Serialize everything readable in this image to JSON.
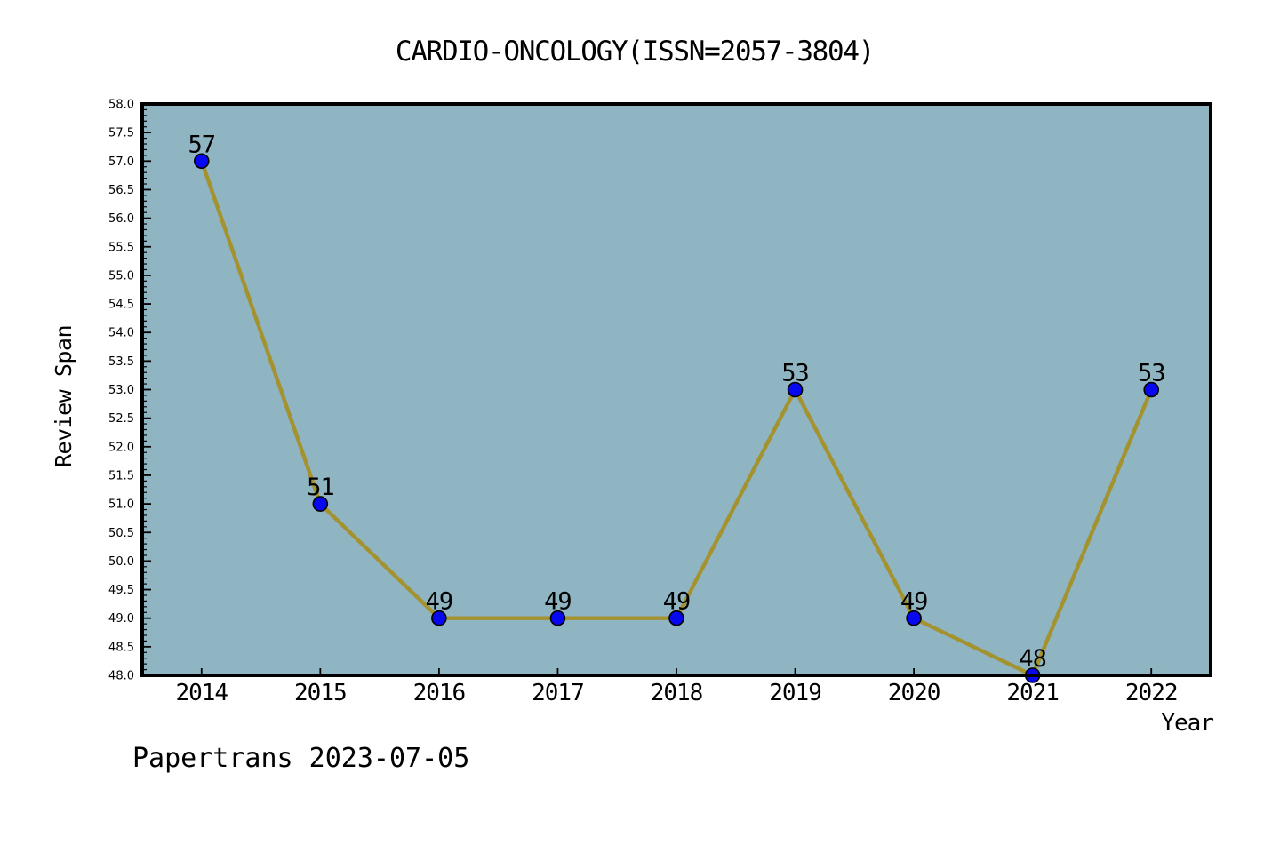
{
  "footer": {
    "watermark": "Papertrans 2023-07-05"
  },
  "chart_data": {
    "type": "line",
    "title": "CARDIO-ONCOLOGY(ISSN=2057-3804)",
    "xlabel": "Year",
    "ylabel": "Review Span",
    "x": [
      2014,
      2015,
      2016,
      2017,
      2018,
      2019,
      2020,
      2021,
      2022
    ],
    "series": [
      {
        "name": "Review Span",
        "values": [
          57,
          51,
          49,
          49,
          49,
          53,
          49,
          48,
          53
        ]
      }
    ],
    "point_labels": [
      "57",
      "51",
      "49",
      "49",
      "49",
      "53",
      "49",
      "48",
      "53"
    ],
    "xlim": [
      2013.5,
      2022.5
    ],
    "ylim": [
      48.0,
      58.0
    ],
    "y_major_step": 0.5,
    "y_minor_step": 0.1,
    "grid": false,
    "legend": "none",
    "colors": {
      "plot_background": "#8fb4c2",
      "line": "#a4922f",
      "marker_fill": "#0808f0",
      "marker_edge": "#000000",
      "axis": "#000000",
      "text": "#000000"
    }
  }
}
